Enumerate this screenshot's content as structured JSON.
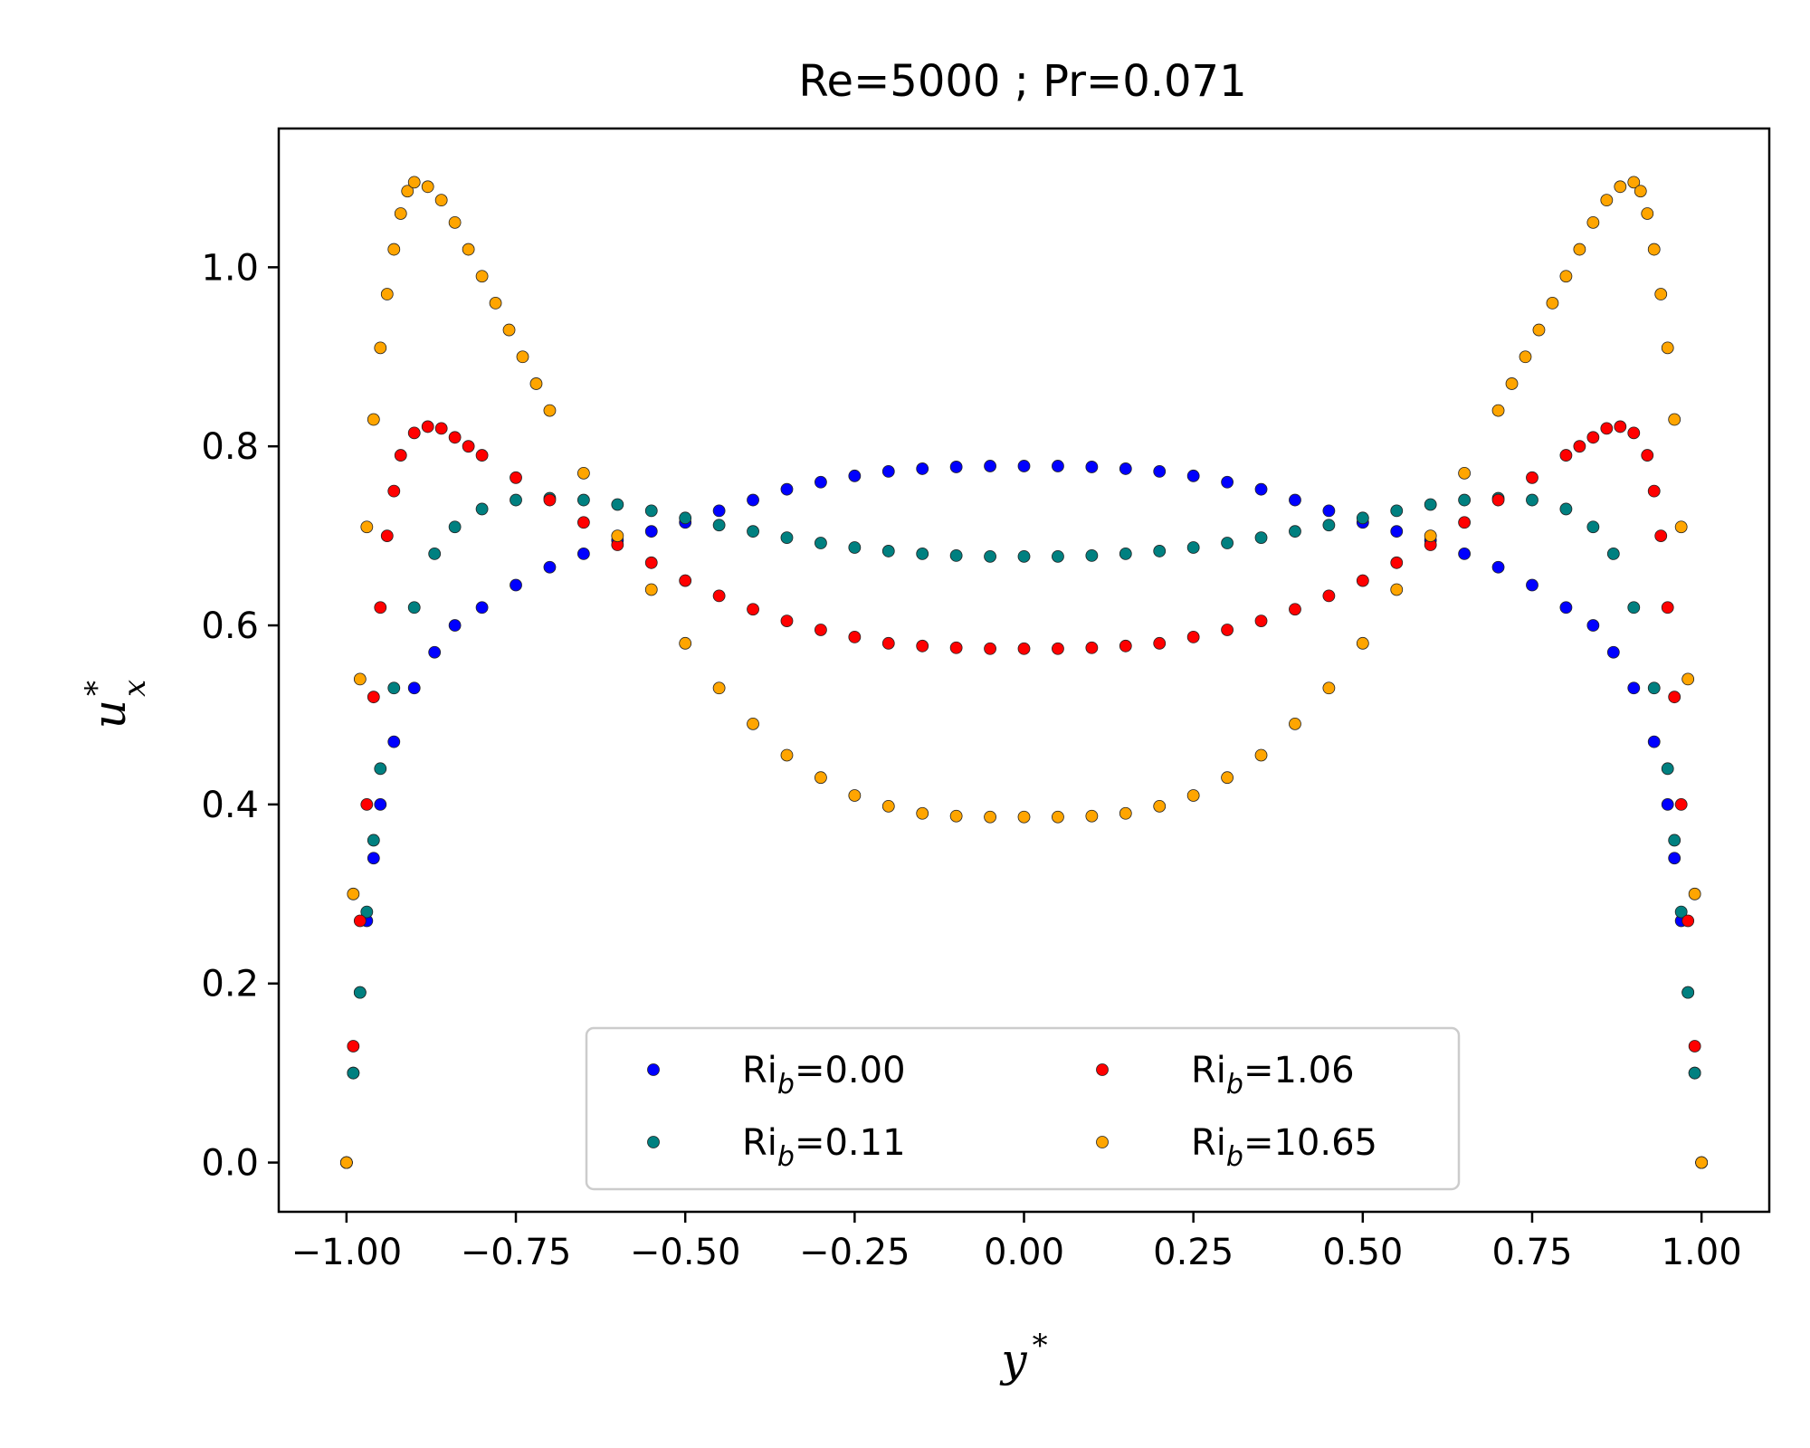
{
  "chart_data": {
    "type": "scatter",
    "title": "Re=5000 ; Pr=0.071",
    "xlabel": "y*",
    "ylabel": "u*x",
    "xlim": [
      -1.1,
      1.1
    ],
    "ylim": [
      -0.055,
      1.155
    ],
    "xticks": [
      -1.0,
      -0.75,
      -0.5,
      -0.25,
      0.0,
      0.25,
      0.5,
      0.75,
      1.0
    ],
    "xtick_labels": [
      "−1.00",
      "−0.75",
      "−0.50",
      "−0.25",
      "0.00",
      "0.25",
      "0.50",
      "0.75",
      "1.00"
    ],
    "yticks": [
      0.0,
      0.2,
      0.4,
      0.6,
      0.8,
      1.0
    ],
    "ytick_labels": [
      "0.0",
      "0.2",
      "0.4",
      "0.6",
      "0.8",
      "1.0"
    ],
    "grid": false,
    "legend": {
      "position": "lower-center",
      "columns": 2
    },
    "series": [
      {
        "name": "Ri_b=0.00",
        "label_main": "Ri",
        "label_sub": "b",
        "label_value": "=0.00",
        "color": "#0000ff",
        "x": [
          -1.0,
          -0.99,
          -0.98,
          -0.97,
          -0.96,
          -0.95,
          -0.93,
          -0.9,
          -0.87,
          -0.84,
          -0.8,
          -0.75,
          -0.7,
          -0.65,
          -0.6,
          -0.55,
          -0.5,
          -0.45,
          -0.4,
          -0.35,
          -0.3,
          -0.25,
          -0.2,
          -0.15,
          -0.1,
          -0.05,
          0.0,
          0.05,
          0.1,
          0.15,
          0.2,
          0.25,
          0.3,
          0.35,
          0.4,
          0.45,
          0.5,
          0.55,
          0.6,
          0.65,
          0.7,
          0.75,
          0.8,
          0.84,
          0.87,
          0.9,
          0.93,
          0.95,
          0.96,
          0.97,
          0.98,
          0.99,
          1.0
        ],
        "y": [
          0.0,
          0.1,
          0.19,
          0.27,
          0.34,
          0.4,
          0.47,
          0.53,
          0.57,
          0.6,
          0.62,
          0.645,
          0.665,
          0.68,
          0.695,
          0.705,
          0.715,
          0.728,
          0.74,
          0.752,
          0.76,
          0.767,
          0.772,
          0.775,
          0.777,
          0.778,
          0.778,
          0.778,
          0.777,
          0.775,
          0.772,
          0.767,
          0.76,
          0.752,
          0.74,
          0.728,
          0.715,
          0.705,
          0.695,
          0.68,
          0.665,
          0.645,
          0.62,
          0.6,
          0.57,
          0.53,
          0.47,
          0.4,
          0.34,
          0.27,
          0.19,
          0.1,
          0.0
        ]
      },
      {
        "name": "Ri_b=0.11",
        "label_main": "Ri",
        "label_sub": "b",
        "label_value": "=0.11",
        "color": "#008080",
        "x": [
          -1.0,
          -0.99,
          -0.98,
          -0.97,
          -0.96,
          -0.95,
          -0.93,
          -0.9,
          -0.87,
          -0.84,
          -0.8,
          -0.75,
          -0.7,
          -0.65,
          -0.6,
          -0.55,
          -0.5,
          -0.45,
          -0.4,
          -0.35,
          -0.3,
          -0.25,
          -0.2,
          -0.15,
          -0.1,
          -0.05,
          0.0,
          0.05,
          0.1,
          0.15,
          0.2,
          0.25,
          0.3,
          0.35,
          0.4,
          0.45,
          0.5,
          0.55,
          0.6,
          0.65,
          0.7,
          0.75,
          0.8,
          0.84,
          0.87,
          0.9,
          0.93,
          0.95,
          0.96,
          0.97,
          0.98,
          0.99,
          1.0
        ],
        "y": [
          0.0,
          0.1,
          0.19,
          0.28,
          0.36,
          0.44,
          0.53,
          0.62,
          0.68,
          0.71,
          0.73,
          0.74,
          0.742,
          0.74,
          0.735,
          0.728,
          0.72,
          0.712,
          0.705,
          0.698,
          0.692,
          0.687,
          0.683,
          0.68,
          0.678,
          0.677,
          0.677,
          0.677,
          0.678,
          0.68,
          0.683,
          0.687,
          0.692,
          0.698,
          0.705,
          0.712,
          0.72,
          0.728,
          0.735,
          0.74,
          0.742,
          0.74,
          0.73,
          0.71,
          0.68,
          0.62,
          0.53,
          0.44,
          0.36,
          0.28,
          0.19,
          0.1,
          0.0
        ]
      },
      {
        "name": "Ri_b=1.06",
        "label_main": "Ri",
        "label_sub": "b",
        "label_value": "=1.06",
        "color": "#ff0000",
        "x": [
          -1.0,
          -0.99,
          -0.98,
          -0.97,
          -0.96,
          -0.95,
          -0.94,
          -0.93,
          -0.92,
          -0.9,
          -0.88,
          -0.86,
          -0.84,
          -0.82,
          -0.8,
          -0.75,
          -0.7,
          -0.65,
          -0.6,
          -0.55,
          -0.5,
          -0.45,
          -0.4,
          -0.35,
          -0.3,
          -0.25,
          -0.2,
          -0.15,
          -0.1,
          -0.05,
          0.0,
          0.05,
          0.1,
          0.15,
          0.2,
          0.25,
          0.3,
          0.35,
          0.4,
          0.45,
          0.5,
          0.55,
          0.6,
          0.65,
          0.7,
          0.75,
          0.8,
          0.82,
          0.84,
          0.86,
          0.88,
          0.9,
          0.92,
          0.93,
          0.94,
          0.95,
          0.96,
          0.97,
          0.98,
          0.99,
          1.0
        ],
        "y": [
          0.0,
          0.13,
          0.27,
          0.4,
          0.52,
          0.62,
          0.7,
          0.75,
          0.79,
          0.815,
          0.822,
          0.82,
          0.81,
          0.8,
          0.79,
          0.765,
          0.74,
          0.715,
          0.69,
          0.67,
          0.65,
          0.633,
          0.618,
          0.605,
          0.595,
          0.587,
          0.58,
          0.577,
          0.575,
          0.574,
          0.574,
          0.574,
          0.575,
          0.577,
          0.58,
          0.587,
          0.595,
          0.605,
          0.618,
          0.633,
          0.65,
          0.67,
          0.69,
          0.715,
          0.74,
          0.765,
          0.79,
          0.8,
          0.81,
          0.82,
          0.822,
          0.815,
          0.79,
          0.75,
          0.7,
          0.62,
          0.52,
          0.4,
          0.27,
          0.13,
          0.0
        ]
      },
      {
        "name": "Ri_b=10.65",
        "label_main": "Ri",
        "label_sub": "b",
        "label_value": "=10.65",
        "color": "#ffa500",
        "x": [
          -1.0,
          -0.99,
          -0.98,
          -0.97,
          -0.96,
          -0.95,
          -0.94,
          -0.93,
          -0.92,
          -0.91,
          -0.9,
          -0.88,
          -0.86,
          -0.84,
          -0.82,
          -0.8,
          -0.78,
          -0.76,
          -0.74,
          -0.72,
          -0.7,
          -0.65,
          -0.6,
          -0.55,
          -0.5,
          -0.45,
          -0.4,
          -0.35,
          -0.3,
          -0.25,
          -0.2,
          -0.15,
          -0.1,
          -0.05,
          0.0,
          0.05,
          0.1,
          0.15,
          0.2,
          0.25,
          0.3,
          0.35,
          0.4,
          0.45,
          0.5,
          0.55,
          0.6,
          0.65,
          0.7,
          0.72,
          0.74,
          0.76,
          0.78,
          0.8,
          0.82,
          0.84,
          0.86,
          0.88,
          0.9,
          0.91,
          0.92,
          0.93,
          0.94,
          0.95,
          0.96,
          0.97,
          0.98,
          0.99,
          1.0
        ],
        "y": [
          0.0,
          0.3,
          0.54,
          0.71,
          0.83,
          0.91,
          0.97,
          1.02,
          1.06,
          1.085,
          1.095,
          1.09,
          1.075,
          1.05,
          1.02,
          0.99,
          0.96,
          0.93,
          0.9,
          0.87,
          0.84,
          0.77,
          0.7,
          0.64,
          0.58,
          0.53,
          0.49,
          0.455,
          0.43,
          0.41,
          0.398,
          0.39,
          0.387,
          0.386,
          0.386,
          0.386,
          0.387,
          0.39,
          0.398,
          0.41,
          0.43,
          0.455,
          0.49,
          0.53,
          0.58,
          0.64,
          0.7,
          0.77,
          0.84,
          0.87,
          0.9,
          0.93,
          0.96,
          0.99,
          1.02,
          1.05,
          1.075,
          1.09,
          1.095,
          1.085,
          1.06,
          1.02,
          0.97,
          0.91,
          0.83,
          0.71,
          0.54,
          0.3,
          0.0
        ]
      }
    ]
  }
}
